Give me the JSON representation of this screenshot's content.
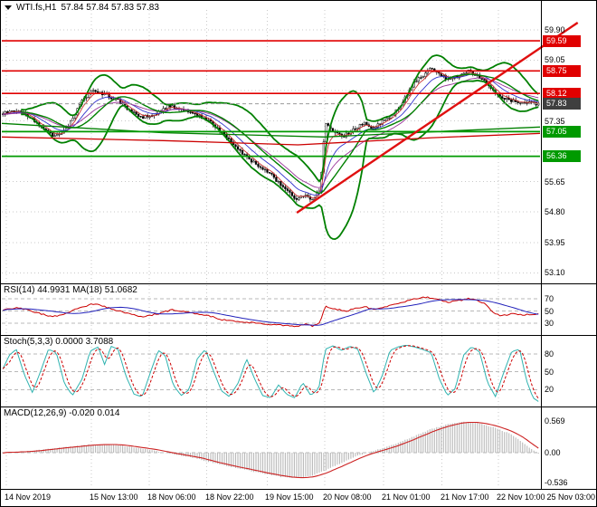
{
  "titlebar": {
    "symbol": "WTI.fs,H1",
    "ohlc": "57.84 57.84 57.83 57.83"
  },
  "axis": {
    "time_labels": [
      {
        "text": "14 Nov 2019",
        "f": 0.008
      },
      {
        "text": "15 Nov 13:00",
        "f": 0.166
      },
      {
        "text": "18 Nov 06:00",
        "f": 0.274
      },
      {
        "text": "18 Nov 22:00",
        "f": 0.381
      },
      {
        "text": "19 Nov 15:00",
        "f": 0.493
      },
      {
        "text": "20 Nov 08:00",
        "f": 0.6
      },
      {
        "text": "21 Nov 01:00",
        "f": 0.709
      },
      {
        "text": "21 Nov 17:00",
        "f": 0.818
      },
      {
        "text": "22 Nov 10:00",
        "f": 0.923
      },
      {
        "text": "25 Nov 03:00",
        "f": 1.025
      }
    ]
  },
  "chart_data": [
    {
      "type": "candlestick",
      "panel": "main",
      "title": "WTI.fs,H1",
      "timeframe": "H1",
      "ohlc": {
        "open": 57.84,
        "high": 57.84,
        "low": 57.83,
        "close": 57.83
      },
      "y_range": [
        52.88,
        60.48
      ],
      "grid_values": [
        59.9,
        59.05,
        58.2,
        57.35,
        56.5,
        55.65,
        54.8,
        53.95,
        53.1
      ],
      "y_ticks": [
        [
          "59.90",
          59.9
        ],
        [
          "59.05",
          59.05
        ],
        [
          "57.35",
          57.35
        ],
        [
          "55.65",
          55.65
        ],
        [
          "54.80",
          54.8
        ],
        [
          "53.95",
          53.95
        ],
        [
          "53.10",
          53.1
        ]
      ],
      "badges": [
        {
          "label": "59.59",
          "price": 59.59,
          "bg": "#e00000"
        },
        {
          "label": "58.75",
          "price": 58.75,
          "bg": "#e00000"
        },
        {
          "label": "58.12",
          "price": 58.12,
          "bg": "#e00000"
        },
        {
          "label": "57.83",
          "price": 57.83,
          "bg": "#3f3f3f"
        },
        {
          "label": "57.05",
          "price": 57.05,
          "bg": "#009a00"
        },
        {
          "label": "56.36",
          "price": 56.36,
          "bg": "#009a00"
        }
      ],
      "levels": [
        {
          "price": 59.59,
          "color": "#e00000",
          "width": 1.6
        },
        {
          "price": 58.75,
          "color": "#e00000",
          "width": 1.6
        },
        {
          "price": 58.12,
          "color": "#e00000",
          "width": 1.6
        },
        {
          "price": 57.05,
          "color": "#009a00",
          "width": 1.8
        },
        {
          "price": 56.36,
          "color": "#009a00",
          "width": 1.8
        }
      ],
      "current_price": {
        "value": 57.83,
        "line_color": "#999999",
        "badge_color": "#3f3f3f"
      },
      "trend_line": {
        "x1_f": 0.548,
        "price1": 54.78,
        "x2_f": 1.07,
        "price2": 60.1,
        "color": "#e01010",
        "width": 2.4
      },
      "bollinger": {
        "period": 20,
        "deviation": 2.1,
        "color": "#008000",
        "width": 1.8
      },
      "emas": [
        {
          "period": 5,
          "color": "#cc3333"
        },
        {
          "period": 12,
          "color": "#3333cc"
        },
        {
          "period": 24,
          "color": "#993399"
        }
      ],
      "slow_lines": [
        {
          "color": "#cc0000",
          "width": 1.3,
          "path": [
            [
              0,
              56.9
            ],
            [
              0.3,
              56.8
            ],
            [
              0.55,
              56.68
            ],
            [
              0.8,
              56.88
            ],
            [
              1,
              57.0
            ]
          ]
        },
        {
          "color": "#008000",
          "width": 1.3,
          "path": [
            [
              0,
              57.28
            ],
            [
              0.3,
              57.02
            ],
            [
              0.6,
              56.9
            ],
            [
              0.85,
              57.08
            ],
            [
              1,
              57.18
            ]
          ]
        }
      ],
      "candles": 238,
      "noise_seed": 12345,
      "up_color": "#ffffff",
      "down_color": "#000000",
      "candle_outline": "#000000",
      "grid_color": "#c9c9c9",
      "close_path": [
        [
          0,
          57.55
        ],
        [
          0.025,
          57.66
        ],
        [
          0.05,
          57.45
        ],
        [
          0.08,
          57.05
        ],
        [
          0.1,
          56.92
        ],
        [
          0.12,
          57.15
        ],
        [
          0.15,
          57.95
        ],
        [
          0.17,
          58.22
        ],
        [
          0.19,
          58.08
        ],
        [
          0.215,
          57.92
        ],
        [
          0.24,
          57.6
        ],
        [
          0.26,
          57.44
        ],
        [
          0.285,
          57.56
        ],
        [
          0.31,
          57.78
        ],
        [
          0.335,
          57.66
        ],
        [
          0.36,
          57.55
        ],
        [
          0.385,
          57.35
        ],
        [
          0.41,
          57.0
        ],
        [
          0.43,
          56.7
        ],
        [
          0.455,
          56.35
        ],
        [
          0.475,
          56.1
        ],
        [
          0.5,
          55.85
        ],
        [
          0.52,
          55.55
        ],
        [
          0.535,
          55.35
        ],
        [
          0.55,
          55.12
        ],
        [
          0.565,
          55.32
        ],
        [
          0.578,
          55.12
        ],
        [
          0.592,
          55.4
        ],
        [
          0.602,
          57.25
        ],
        [
          0.615,
          57.1
        ],
        [
          0.635,
          56.92
        ],
        [
          0.655,
          57.12
        ],
        [
          0.675,
          57.28
        ],
        [
          0.69,
          57.1
        ],
        [
          0.705,
          57.3
        ],
        [
          0.725,
          57.5
        ],
        [
          0.74,
          57.72
        ],
        [
          0.755,
          58.1
        ],
        [
          0.77,
          58.45
        ],
        [
          0.785,
          58.62
        ],
        [
          0.8,
          58.82
        ],
        [
          0.815,
          58.68
        ],
        [
          0.83,
          58.5
        ],
        [
          0.85,
          58.6
        ],
        [
          0.87,
          58.75
        ],
        [
          0.885,
          58.62
        ],
        [
          0.9,
          58.5
        ],
        [
          0.915,
          58.2
        ],
        [
          0.93,
          58.0
        ],
        [
          0.95,
          57.92
        ],
        [
          0.97,
          57.88
        ],
        [
          1,
          57.83
        ]
      ]
    },
    {
      "type": "line",
      "panel": "rsi",
      "label": "RSI(14) 44.9931 MA(18) 51.0682",
      "indicator": "RSI",
      "period": 14,
      "value": 44.9931,
      "ma_period": 18,
      "ma_value": 51.0682,
      "y_range": [
        14,
        91
      ],
      "y_ticks": [
        [
          "70",
          70
        ],
        [
          "50",
          50
        ],
        [
          "30",
          30
        ]
      ],
      "levels": [
        70,
        50,
        30
      ],
      "main_color": "#cc0000",
      "ma_color": "#2222bb",
      "path": [
        [
          0,
          52
        ],
        [
          0.03,
          56
        ],
        [
          0.06,
          48
        ],
        [
          0.09,
          41
        ],
        [
          0.11,
          44
        ],
        [
          0.14,
          55
        ],
        [
          0.17,
          62
        ],
        [
          0.2,
          55
        ],
        [
          0.23,
          47
        ],
        [
          0.26,
          40
        ],
        [
          0.29,
          46
        ],
        [
          0.315,
          52
        ],
        [
          0.35,
          48
        ],
        [
          0.385,
          42
        ],
        [
          0.41,
          36
        ],
        [
          0.44,
          33
        ],
        [
          0.47,
          31
        ],
        [
          0.5,
          28
        ],
        [
          0.53,
          26
        ],
        [
          0.55,
          24
        ],
        [
          0.565,
          30
        ],
        [
          0.578,
          26
        ],
        [
          0.592,
          30
        ],
        [
          0.602,
          58
        ],
        [
          0.62,
          54
        ],
        [
          0.64,
          50
        ],
        [
          0.66,
          55
        ],
        [
          0.675,
          58
        ],
        [
          0.69,
          53
        ],
        [
          0.705,
          56
        ],
        [
          0.725,
          60
        ],
        [
          0.745,
          64
        ],
        [
          0.77,
          70
        ],
        [
          0.79,
          73
        ],
        [
          0.81,
          70
        ],
        [
          0.83,
          65
        ],
        [
          0.85,
          67
        ],
        [
          0.87,
          71
        ],
        [
          0.885,
          67
        ],
        [
          0.9,
          62
        ],
        [
          0.915,
          49
        ],
        [
          0.93,
          42
        ],
        [
          0.95,
          46
        ],
        [
          0.97,
          44
        ],
        [
          1,
          45
        ]
      ]
    },
    {
      "type": "line",
      "panel": "stoch",
      "label": "Stoch(5,3,3) 0.0000 3.7088",
      "indicator": "Stochastic",
      "value_k": 0.0,
      "value_d": 3.7088,
      "y_range": [
        -4,
        106
      ],
      "y_ticks": [
        [
          "80",
          80
        ],
        [
          "50",
          50
        ],
        [
          "20",
          20
        ]
      ],
      "levels": [
        80,
        50,
        20
      ],
      "k_color": "#2fb3b0",
      "d_color": "#cc0000",
      "path": [
        [
          0,
          55
        ],
        [
          0.012,
          78
        ],
        [
          0.025,
          88
        ],
        [
          0.04,
          45
        ],
        [
          0.055,
          15
        ],
        [
          0.07,
          50
        ],
        [
          0.085,
          88
        ],
        [
          0.1,
          82
        ],
        [
          0.115,
          30
        ],
        [
          0.13,
          10
        ],
        [
          0.148,
          38
        ],
        [
          0.163,
          85
        ],
        [
          0.178,
          92
        ],
        [
          0.19,
          62
        ],
        [
          0.202,
          93
        ],
        [
          0.215,
          88
        ],
        [
          0.23,
          42
        ],
        [
          0.245,
          12
        ],
        [
          0.26,
          8
        ],
        [
          0.275,
          48
        ],
        [
          0.29,
          86
        ],
        [
          0.303,
          78
        ],
        [
          0.318,
          28
        ],
        [
          0.333,
          10
        ],
        [
          0.348,
          20
        ],
        [
          0.363,
          72
        ],
        [
          0.378,
          88
        ],
        [
          0.393,
          52
        ],
        [
          0.408,
          18
        ],
        [
          0.423,
          8
        ],
        [
          0.44,
          32
        ],
        [
          0.455,
          72
        ],
        [
          0.47,
          38
        ],
        [
          0.485,
          10
        ],
        [
          0.5,
          6
        ],
        [
          0.515,
          28
        ],
        [
          0.53,
          12
        ],
        [
          0.545,
          6
        ],
        [
          0.56,
          32
        ],
        [
          0.575,
          10
        ],
        [
          0.59,
          22
        ],
        [
          0.602,
          88
        ],
        [
          0.617,
          94
        ],
        [
          0.632,
          86
        ],
        [
          0.648,
          93
        ],
        [
          0.663,
          88
        ],
        [
          0.678,
          48
        ],
        [
          0.693,
          14
        ],
        [
          0.708,
          42
        ],
        [
          0.723,
          86
        ],
        [
          0.738,
          92
        ],
        [
          0.753,
          95
        ],
        [
          0.768,
          92
        ],
        [
          0.783,
          88
        ],
        [
          0.8,
          82
        ],
        [
          0.815,
          38
        ],
        [
          0.83,
          10
        ],
        [
          0.845,
          22
        ],
        [
          0.86,
          78
        ],
        [
          0.875,
          92
        ],
        [
          0.89,
          84
        ],
        [
          0.905,
          32
        ],
        [
          0.92,
          8
        ],
        [
          0.935,
          48
        ],
        [
          0.95,
          84
        ],
        [
          0.965,
          88
        ],
        [
          0.978,
          35
        ],
        [
          0.99,
          6
        ],
        [
          1,
          0
        ]
      ]
    },
    {
      "type": "histogram_line",
      "panel": "macd",
      "label": "MACD(12,26,9) -0.020 0.014",
      "indicator": "MACD",
      "value_main": -0.02,
      "value_signal": 0.014,
      "y_range": [
        -0.61,
        0.77
      ],
      "y_ticks": [
        [
          "0.569",
          0.569
        ],
        [
          "0.00",
          0.0
        ],
        [
          "-0.536",
          -0.536
        ]
      ],
      "zero_line": 0,
      "hist_color": "#b9b9b9",
      "signal_color": "#cc2222",
      "path": [
        [
          0,
          0.0
        ],
        [
          0.04,
          0.02
        ],
        [
          0.08,
          0.06
        ],
        [
          0.12,
          0.1
        ],
        [
          0.16,
          0.14
        ],
        [
          0.2,
          0.15
        ],
        [
          0.24,
          0.1
        ],
        [
          0.28,
          0.04
        ],
        [
          0.32,
          -0.03
        ],
        [
          0.36,
          -0.1
        ],
        [
          0.4,
          -0.2
        ],
        [
          0.44,
          -0.28
        ],
        [
          0.48,
          -0.36
        ],
        [
          0.52,
          -0.43
        ],
        [
          0.55,
          -0.45
        ],
        [
          0.58,
          -0.4
        ],
        [
          0.61,
          -0.28
        ],
        [
          0.64,
          -0.15
        ],
        [
          0.66,
          -0.06
        ],
        [
          0.68,
          0.0
        ],
        [
          0.71,
          0.08
        ],
        [
          0.74,
          0.18
        ],
        [
          0.77,
          0.3
        ],
        [
          0.8,
          0.42
        ],
        [
          0.83,
          0.5
        ],
        [
          0.86,
          0.55
        ],
        [
          0.89,
          0.52
        ],
        [
          0.92,
          0.44
        ],
        [
          0.95,
          0.32
        ],
        [
          0.97,
          0.18
        ],
        [
          0.99,
          0.05
        ],
        [
          1,
          -0.02
        ]
      ]
    }
  ]
}
